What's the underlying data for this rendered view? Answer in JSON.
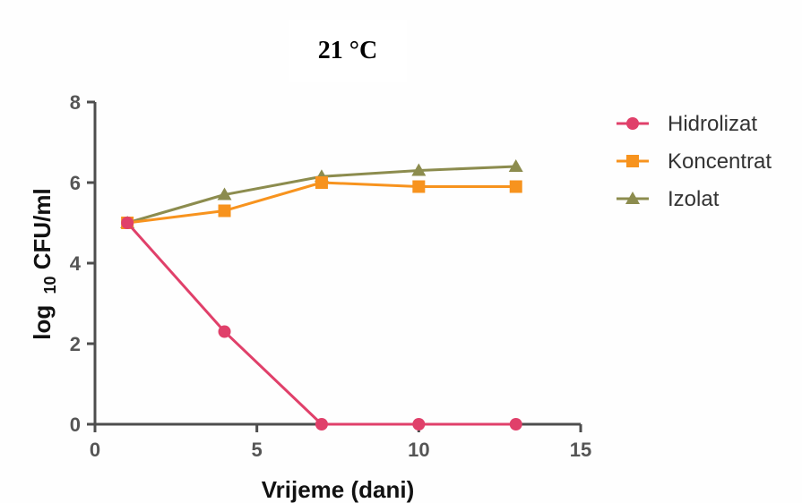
{
  "chart_data": {
    "type": "line",
    "title": "21 °C",
    "xlabel": "Vrijeme (dani)",
    "ylabel_prefix": "log",
    "ylabel_subscript": "10",
    "ylabel_suffix": " CFU/ml",
    "xlim": [
      0,
      15
    ],
    "ylim": [
      0,
      8
    ],
    "x_ticks": [
      0,
      5,
      10,
      15
    ],
    "y_ticks": [
      0,
      2,
      4,
      6,
      8
    ],
    "x_tick_labels": [
      "0",
      "5",
      "10",
      "15"
    ],
    "y_tick_labels": [
      "0",
      "2",
      "4",
      "6",
      "8"
    ],
    "x": [
      1,
      4,
      7,
      10,
      13
    ],
    "grid": false,
    "legend_position": "right",
    "series": [
      {
        "name": "Hidrolizat",
        "marker": "circle",
        "color": "#e0406a",
        "values": [
          5.0,
          2.3,
          0.0,
          0.0,
          0.0
        ]
      },
      {
        "name": "Koncentrat",
        "marker": "square",
        "color": "#f7931e",
        "values": [
          5.0,
          5.3,
          6.0,
          5.9,
          5.9
        ]
      },
      {
        "name": "Izolat",
        "marker": "triangle",
        "color": "#8c8c4e",
        "values": [
          5.0,
          5.7,
          6.15,
          6.3,
          6.4
        ]
      }
    ]
  }
}
